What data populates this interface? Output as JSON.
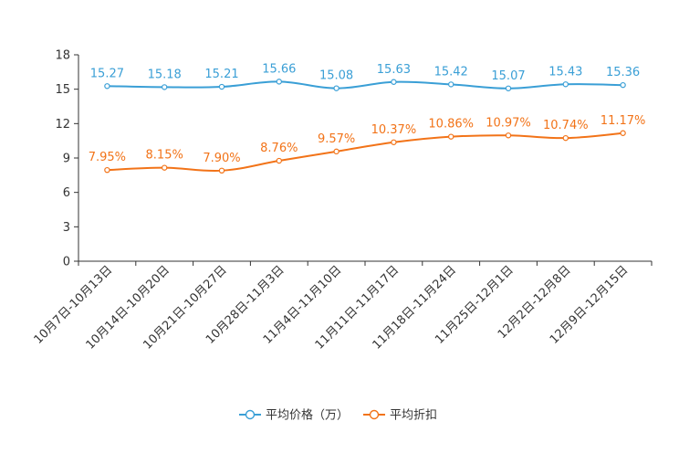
{
  "chart_data": {
    "type": "line",
    "title": "",
    "xlabel": "",
    "ylabel": "",
    "ylim": [
      0,
      18
    ],
    "yticks": [
      0,
      3,
      6,
      9,
      12,
      15,
      18
    ],
    "ytick_labels": [
      "0",
      "3",
      "6",
      "9",
      "12",
      "15",
      "18"
    ],
    "grid": false,
    "legend_position": "bottom-center",
    "categories": [
      "10月7日-10月13日",
      "10月14日-10月20日",
      "10月21日-10月27日",
      "10月28日-11月3日",
      "11月4日-11月10日",
      "11月11日-11月17日",
      "11月18日-11月24日",
      "11月25日-12月1日",
      "12月2日-12月8日",
      "12月9日-12月15日"
    ],
    "series": [
      {
        "name": "平均价格（万）",
        "color": "#3a9fd6",
        "values": [
          15.27,
          15.18,
          15.21,
          15.66,
          15.08,
          15.63,
          15.42,
          15.07,
          15.43,
          15.36
        ],
        "labels": [
          "15.27",
          "15.18",
          "15.21",
          "15.66",
          "15.08",
          "15.63",
          "15.42",
          "15.07",
          "15.43",
          "15.36"
        ]
      },
      {
        "name": "平均折扣",
        "color": "#f27318",
        "values": [
          7.95,
          8.15,
          7.9,
          8.76,
          9.57,
          10.37,
          10.86,
          10.97,
          10.74,
          11.17
        ],
        "labels": [
          "7.95%",
          "8.15%",
          "7.90%",
          "8.76%",
          "9.57%",
          "10.37%",
          "10.86%",
          "10.97%",
          "10.74%",
          "11.17%"
        ]
      }
    ]
  }
}
